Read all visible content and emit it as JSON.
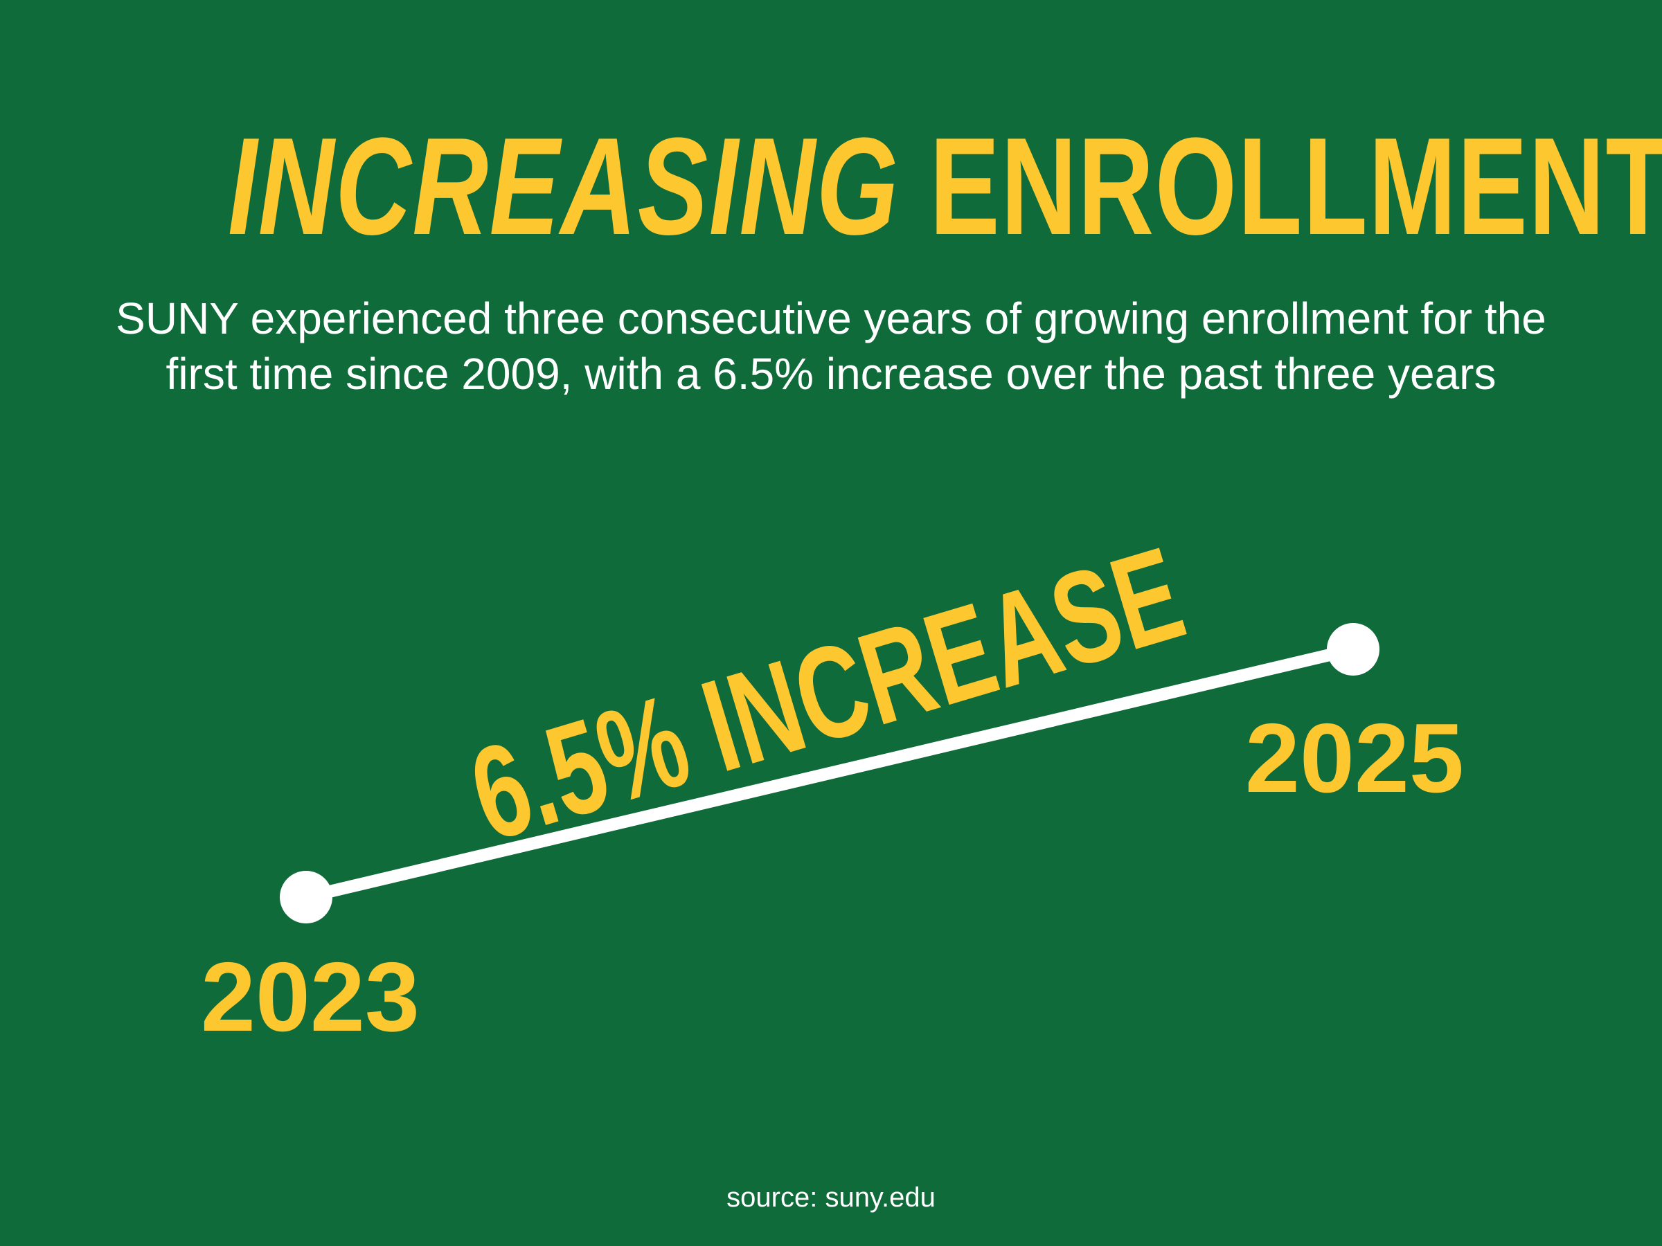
{
  "title": {
    "italic_part": "INCREASING",
    "upright_part": "ENROLLMENT"
  },
  "subtitle": {
    "line1": "SUNY experienced three consecutive years of growing enrollment for the",
    "line2": "first time since 2009, with a 6.5% increase over the past three years"
  },
  "graphic": {
    "increase_label": "6.5% INCREASE",
    "increase_percent": 6.5,
    "start_year": "2023",
    "end_year": "2025"
  },
  "source": "source: suny.edu",
  "colors": {
    "background": "#106b3a",
    "accent": "#fdc82f",
    "text": "#ffffff"
  }
}
